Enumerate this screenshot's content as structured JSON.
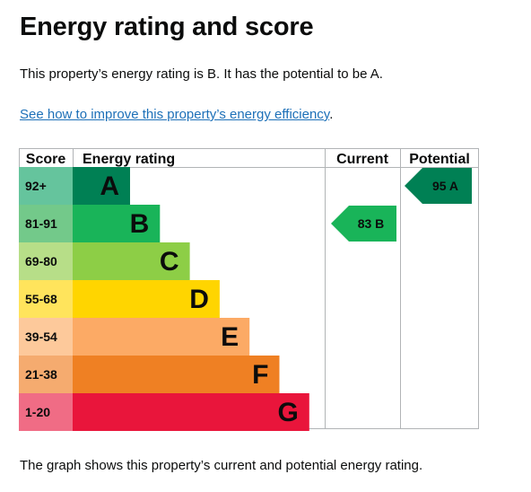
{
  "heading": "Energy rating and score",
  "summary_text": "This property’s energy rating is B. It has the potential to be A.",
  "improve_link_text": "See how to improve this property’s energy efficiency",
  "improve_link_suffix": ".",
  "caption": "The graph shows this property’s current and potential energy rating.",
  "chart_data": {
    "type": "bar",
    "headers": {
      "score": "Score",
      "rating": "Energy rating",
      "current": "Current",
      "potential": "Potential"
    },
    "bands": [
      {
        "score_range": "92+",
        "letter": "A",
        "rank": 1,
        "color": "#008054",
        "score_bg": "#65c49d"
      },
      {
        "score_range": "81-91",
        "letter": "B",
        "rank": 2,
        "color": "#19b459",
        "score_bg": "#73c98a"
      },
      {
        "score_range": "69-80",
        "letter": "C",
        "rank": 3,
        "color": "#8dce46",
        "score_bg": "#b7de88"
      },
      {
        "score_range": "55-68",
        "letter": "D",
        "rank": 4,
        "color": "#ffd500",
        "score_bg": "#ffe45c"
      },
      {
        "score_range": "39-54",
        "letter": "E",
        "rank": 5,
        "color": "#fcaa65",
        "score_bg": "#fdc99b"
      },
      {
        "score_range": "21-38",
        "letter": "F",
        "rank": 6,
        "color": "#ef8023",
        "score_bg": "#f5ab6f"
      },
      {
        "score_range": "1-20",
        "letter": "G",
        "rank": 7,
        "color": "#e9153b",
        "score_bg": "#f06c85"
      }
    ],
    "current": {
      "score": 83,
      "letter": "B",
      "label": "83  B",
      "color": "#19b459"
    },
    "potential": {
      "score": 95,
      "letter": "A",
      "label": "95  A",
      "color": "#008054"
    }
  }
}
